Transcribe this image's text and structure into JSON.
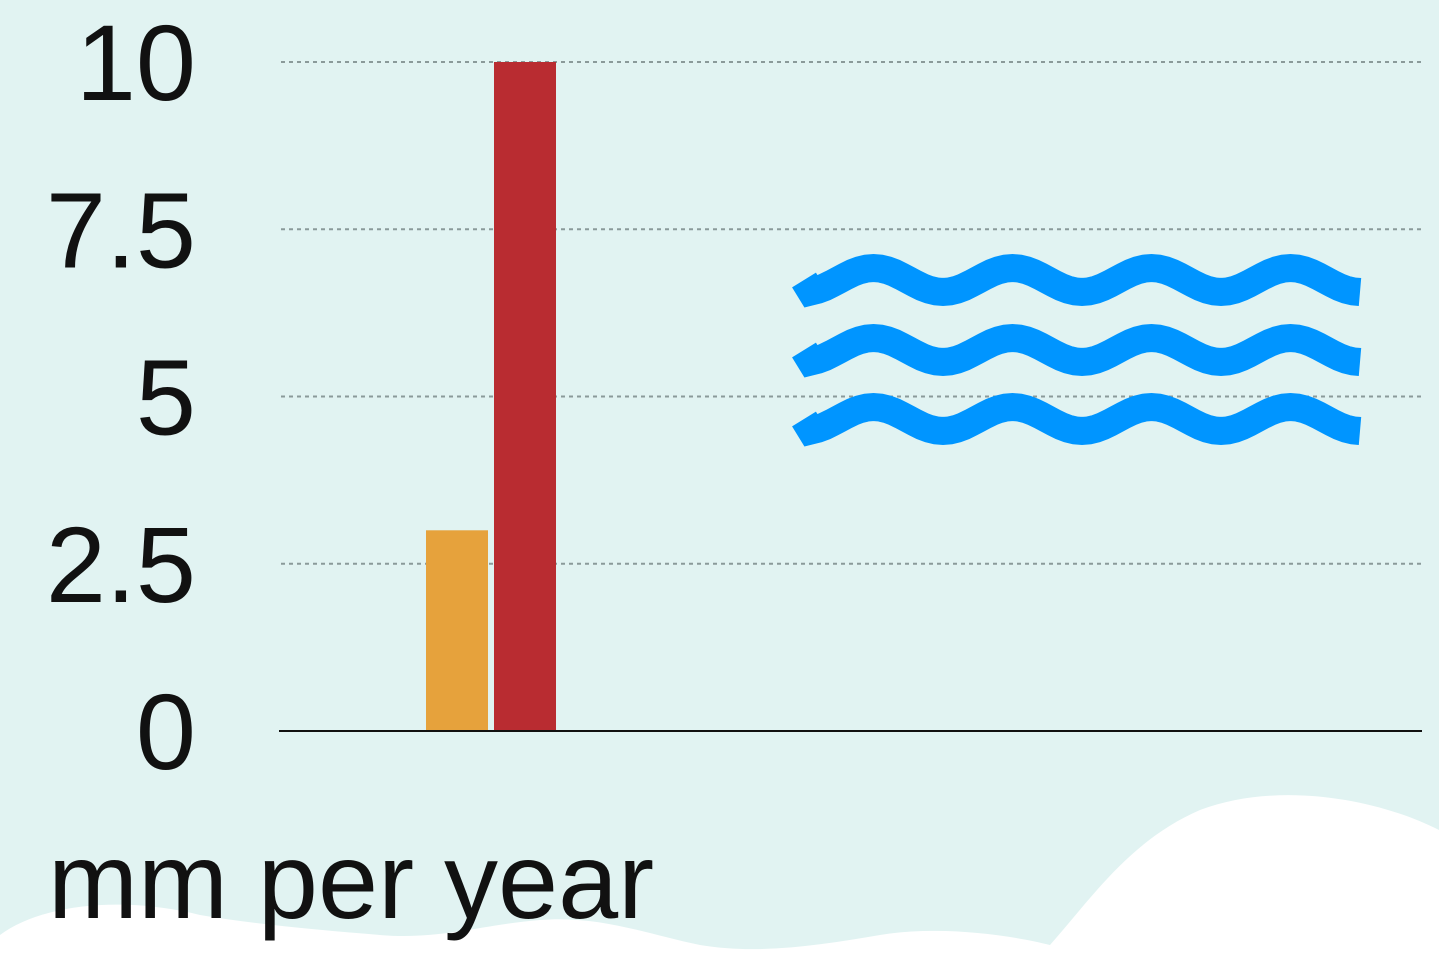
{
  "chart_data": {
    "type": "bar",
    "ylabel": "mm per year",
    "ylim": [
      0,
      10
    ],
    "yticks": [
      0,
      2.5,
      5,
      7.5,
      10
    ],
    "ytick_labels": [
      "0",
      "2.5",
      "5",
      "7.5",
      "10"
    ],
    "grid": true,
    "series": [
      {
        "values": [
          3.0
        ],
        "color": "#e6a23c"
      },
      {
        "values": [
          10.0
        ],
        "color": "#b92c31"
      }
    ],
    "categories": [
      ""
    ]
  },
  "icon": {
    "name": "water-waves-icon",
    "color": "#0095ff"
  },
  "colors": {
    "background": "#e1f3f2",
    "clouds": "#ffffff",
    "axis": "#111111",
    "grid": "#8a9a9a"
  }
}
